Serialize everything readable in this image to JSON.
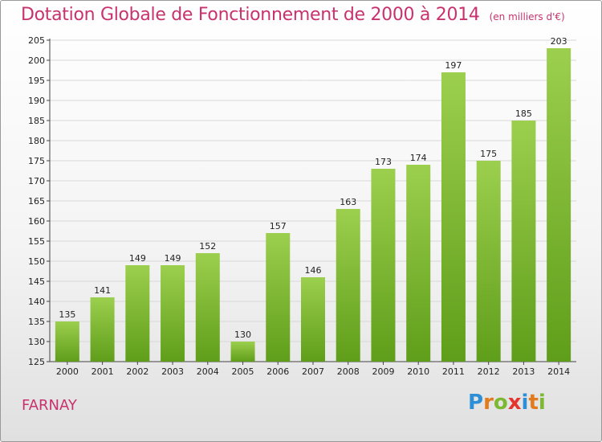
{
  "title": "Dotation Globale de Fonctionnement de 2000 à 2014",
  "subtitle": "(en milliers d'€)",
  "commune": "FARNAY",
  "logo": {
    "text": "Proxiti",
    "letters": [
      {
        "char": "P",
        "color": "#2e8fd6"
      },
      {
        "char": "r",
        "color": "#e27a1e"
      },
      {
        "char": "o",
        "color": "#7cb832"
      },
      {
        "char": "x",
        "color": "#e3342f"
      },
      {
        "char": "i",
        "color": "#2e8fd6"
      },
      {
        "char": "t",
        "color": "#e27a1e"
      },
      {
        "char": "i",
        "color": "#7cb832"
      }
    ]
  },
  "colors": {
    "accent": "#c8326e",
    "bar_top": "#9ccf4e",
    "bar_bottom": "#5f9e1a",
    "grid": "#d8d8d8"
  },
  "chart_data": {
    "type": "bar",
    "title": "Dotation Globale de Fonctionnement de 2000 à 2014",
    "subtitle": "(en milliers d'€)",
    "categories": [
      "2000",
      "2001",
      "2002",
      "2003",
      "2004",
      "2005",
      "2006",
      "2007",
      "2008",
      "2009",
      "2010",
      "2011",
      "2012",
      "2013",
      "2014"
    ],
    "values": [
      135,
      141,
      149,
      149,
      152,
      130,
      157,
      146,
      163,
      173,
      174,
      197,
      175,
      185,
      203
    ],
    "ylim": [
      125,
      205
    ],
    "ytick_step": 5,
    "grid": true,
    "xlabel": "",
    "ylabel": ""
  }
}
